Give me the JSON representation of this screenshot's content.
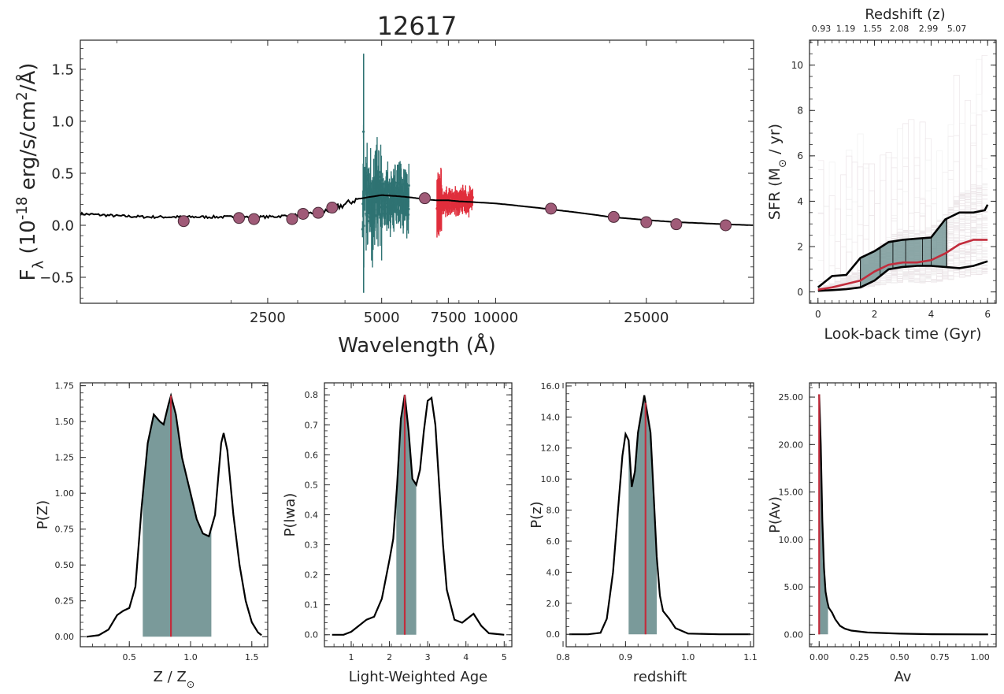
{
  "figure_title": "12617",
  "colors": {
    "photometry": "#a05b78",
    "grism_blue": "#2f7373",
    "grism_red": "#e02e3c",
    "model": "#000000",
    "fill": "#7a9a9a",
    "median": "#c22c3c"
  },
  "chart_data": [
    {
      "id": "sed",
      "type": "scatter",
      "title": "12617",
      "xlabel": "Wavelength ($\\AA$)",
      "ylabel": "F$_\\lambda$ (10$^{-18}$ $erg/s/cm^2/\\AA$)",
      "x_scale": "log",
      "xlim": [
        800,
        48000
      ],
      "ylim": [
        -0.75,
        1.78
      ],
      "x_ticks": [
        2500,
        5000,
        7500,
        10000,
        25000
      ],
      "y_ticks": [
        -0.5,
        0.0,
        0.5,
        1.0,
        1.5
      ],
      "series": [
        {
          "kind": "photometry",
          "points": [
            [
              1500,
              0.04
            ],
            [
              2100,
              0.07
            ],
            [
              2300,
              0.06
            ],
            [
              2900,
              0.06
            ],
            [
              3100,
              0.11
            ],
            [
              3400,
              0.12
            ],
            [
              3700,
              0.17
            ],
            [
              6500,
              0.26
            ],
            [
              14000,
              0.16
            ],
            [
              20500,
              0.08
            ],
            [
              25000,
              0.03
            ],
            [
              30000,
              0.01
            ],
            [
              40500,
              0.0
            ]
          ]
        },
        {
          "kind": "model",
          "points": [
            [
              800,
              0.11
            ],
            [
              1000,
              0.09
            ],
            [
              1200,
              0.08
            ],
            [
              1500,
              0.08
            ],
            [
              2000,
              0.08
            ],
            [
              2500,
              0.08
            ],
            [
              3000,
              0.1
            ],
            [
              3500,
              0.13
            ],
            [
              4000,
              0.2
            ],
            [
              4300,
              0.25
            ],
            [
              4600,
              0.27
            ],
            [
              5000,
              0.29
            ],
            [
              5500,
              0.28
            ],
            [
              5900,
              0.27
            ],
            [
              6500,
              0.25
            ],
            [
              7000,
              0.24
            ],
            [
              7500,
              0.24
            ],
            [
              8000,
              0.23
            ],
            [
              9000,
              0.22
            ],
            [
              10000,
              0.21
            ],
            [
              12000,
              0.18
            ],
            [
              15000,
              0.14
            ],
            [
              20000,
              0.08
            ],
            [
              25000,
              0.05
            ],
            [
              30000,
              0.03
            ],
            [
              40000,
              0.01
            ],
            [
              48000,
              0.0
            ]
          ]
        },
        {
          "kind": "grism_blue",
          "range": [
            4450,
            5900
          ],
          "level": 0.25,
          "scatter": 0.18,
          "peak": 1.65
        },
        {
          "kind": "grism_red",
          "range": [
            7000,
            8700
          ],
          "level": 0.23,
          "scatter": 0.07
        }
      ]
    },
    {
      "id": "sfh",
      "type": "line",
      "title": "Redshift (z)",
      "xlabel": "Look-back time (Gyr)",
      "ylabel": "SFR ($M_\\odot$ / yr)",
      "xlim": [
        -0.3,
        6.3
      ],
      "ylim": [
        -0.5,
        11.1
      ],
      "x_ticks": [
        0,
        2,
        4,
        6
      ],
      "y_ticks": [
        0,
        2,
        4,
        6,
        8,
        10
      ],
      "top_tick_labels": [
        "0.93",
        "1.19",
        "1.55",
        "2.08",
        "2.99",
        "5.07"
      ],
      "median": [
        [
          0,
          0.1
        ],
        [
          0.5,
          0.2
        ],
        [
          1,
          0.35
        ],
        [
          1.5,
          0.5
        ],
        [
          2,
          0.9
        ],
        [
          2.5,
          1.2
        ],
        [
          3,
          1.3
        ],
        [
          3.5,
          1.3
        ],
        [
          4,
          1.4
        ],
        [
          4.5,
          1.7
        ],
        [
          5,
          2.1
        ],
        [
          5.5,
          2.3
        ],
        [
          6,
          2.3
        ]
      ],
      "upper": [
        [
          0,
          0.2
        ],
        [
          0.5,
          0.7
        ],
        [
          1,
          0.75
        ],
        [
          1.5,
          1.5
        ],
        [
          2,
          1.8
        ],
        [
          2.5,
          2.2
        ],
        [
          3,
          2.3
        ],
        [
          3.5,
          2.35
        ],
        [
          4,
          2.4
        ],
        [
          4.5,
          3.2
        ],
        [
          5,
          3.5
        ],
        [
          5.5,
          3.5
        ],
        [
          5.9,
          3.6
        ],
        [
          6,
          3.85
        ]
      ],
      "lower": [
        [
          0,
          0.05
        ],
        [
          0.5,
          0.08
        ],
        [
          1,
          0.12
        ],
        [
          1.5,
          0.2
        ],
        [
          2,
          0.5
        ],
        [
          2.5,
          1.0
        ],
        [
          3,
          1.1
        ],
        [
          3.5,
          1.15
        ],
        [
          4,
          1.15
        ],
        [
          4.5,
          1.1
        ],
        [
          5,
          1.05
        ],
        [
          5.5,
          1.15
        ],
        [
          6,
          1.35
        ]
      ],
      "shade_range": [
        1.5,
        4.55
      ],
      "shade_dividers": [
        2.2,
        2.65,
        3.1,
        3.7,
        4.0,
        4.55
      ]
    },
    {
      "id": "pz_metal",
      "type": "area",
      "xlabel": "Z / Z$_\\odot$",
      "ylabel": "P(Z)",
      "xlim": [
        0.1,
        1.63
      ],
      "ylim": [
        -0.07,
        1.77
      ],
      "x_ticks": [
        0.5,
        1.0,
        1.5
      ],
      "y_ticks": [
        0.0,
        0.25,
        0.5,
        0.75,
        1.0,
        1.25,
        1.5,
        1.75
      ],
      "tick_format": 2,
      "median": 0.84,
      "shade": [
        0.61,
        1.17
      ],
      "curve": [
        [
          0.15,
          0.0
        ],
        [
          0.25,
          0.01
        ],
        [
          0.33,
          0.05
        ],
        [
          0.4,
          0.15
        ],
        [
          0.45,
          0.18
        ],
        [
          0.5,
          0.2
        ],
        [
          0.55,
          0.35
        ],
        [
          0.6,
          0.9
        ],
        [
          0.65,
          1.35
        ],
        [
          0.7,
          1.55
        ],
        [
          0.75,
          1.5
        ],
        [
          0.78,
          1.48
        ],
        [
          0.82,
          1.62
        ],
        [
          0.84,
          1.68
        ],
        [
          0.88,
          1.55
        ],
        [
          0.93,
          1.25
        ],
        [
          1.0,
          1.0
        ],
        [
          1.05,
          0.82
        ],
        [
          1.1,
          0.72
        ],
        [
          1.15,
          0.7
        ],
        [
          1.2,
          0.85
        ],
        [
          1.25,
          1.35
        ],
        [
          1.27,
          1.42
        ],
        [
          1.3,
          1.3
        ],
        [
          1.35,
          0.85
        ],
        [
          1.4,
          0.5
        ],
        [
          1.45,
          0.25
        ],
        [
          1.5,
          0.1
        ],
        [
          1.55,
          0.03
        ],
        [
          1.58,
          0.01
        ]
      ]
    },
    {
      "id": "pz_age",
      "type": "area",
      "xlabel": "Light-Weighted Age",
      "ylabel": "P(lwa)",
      "xlim": [
        0.3,
        5.2
      ],
      "ylim": [
        -0.04,
        0.84
      ],
      "x_ticks": [
        1,
        2,
        3,
        4,
        5
      ],
      "y_ticks": [
        0.0,
        0.1,
        0.2,
        0.3,
        0.4,
        0.5,
        0.6,
        0.7,
        0.8
      ],
      "tick_format": 1,
      "median": 2.4,
      "shade": [
        2.18,
        2.7
      ],
      "curve": [
        [
          0.5,
          0.0
        ],
        [
          0.8,
          0.0
        ],
        [
          1.0,
          0.01
        ],
        [
          1.2,
          0.03
        ],
        [
          1.4,
          0.05
        ],
        [
          1.6,
          0.06
        ],
        [
          1.8,
          0.12
        ],
        [
          2.0,
          0.25
        ],
        [
          2.1,
          0.32
        ],
        [
          2.2,
          0.5
        ],
        [
          2.3,
          0.72
        ],
        [
          2.4,
          0.8
        ],
        [
          2.5,
          0.68
        ],
        [
          2.6,
          0.52
        ],
        [
          2.7,
          0.5
        ],
        [
          2.8,
          0.55
        ],
        [
          2.9,
          0.68
        ],
        [
          3.0,
          0.78
        ],
        [
          3.1,
          0.79
        ],
        [
          3.2,
          0.7
        ],
        [
          3.3,
          0.5
        ],
        [
          3.4,
          0.3
        ],
        [
          3.5,
          0.15
        ],
        [
          3.7,
          0.05
        ],
        [
          3.9,
          0.04
        ],
        [
          4.1,
          0.06
        ],
        [
          4.2,
          0.07
        ],
        [
          4.4,
          0.03
        ],
        [
          4.6,
          0.005
        ],
        [
          5.0,
          0.0
        ]
      ]
    },
    {
      "id": "pz_redshift",
      "type": "area",
      "xlabel": "redshift",
      "ylabel": "P(z)",
      "xlim": [
        0.805,
        1.105
      ],
      "ylim": [
        -0.8,
        16.2
      ],
      "x_ticks": [
        0.8,
        0.9,
        1.0,
        1.1
      ],
      "y_ticks": [
        0,
        2,
        4,
        6,
        8,
        10,
        12,
        14,
        16
      ],
      "tick_format": 1,
      "median": 0.932,
      "shade": [
        0.905,
        0.95
      ],
      "curve": [
        [
          0.81,
          0.0
        ],
        [
          0.84,
          0.0
        ],
        [
          0.86,
          0.1
        ],
        [
          0.87,
          1.0
        ],
        [
          0.88,
          4.0
        ],
        [
          0.89,
          9.0
        ],
        [
          0.895,
          11.5
        ],
        [
          0.9,
          12.9
        ],
        [
          0.905,
          12.5
        ],
        [
          0.91,
          9.5
        ],
        [
          0.915,
          10.5
        ],
        [
          0.92,
          13.0
        ],
        [
          0.93,
          15.4
        ],
        [
          0.94,
          13.0
        ],
        [
          0.945,
          9.0
        ],
        [
          0.95,
          5.0
        ],
        [
          0.955,
          2.5
        ],
        [
          0.96,
          1.5
        ],
        [
          0.97,
          1.0
        ],
        [
          0.98,
          0.4
        ],
        [
          1.0,
          0.05
        ],
        [
          1.05,
          0.0
        ],
        [
          1.1,
          0.0
        ]
      ]
    },
    {
      "id": "pz_av",
      "type": "area",
      "xlabel": "Av",
      "ylabel": "P(Av)",
      "xlim": [
        -0.06,
        1.1
      ],
      "ylim": [
        -1.3,
        26.5
      ],
      "x_ticks": [
        0.0,
        0.25,
        0.5,
        0.75,
        1.0
      ],
      "y_ticks": [
        0,
        5,
        10,
        15,
        20,
        25
      ],
      "tick_format": 2,
      "median": 0.0,
      "shade": [
        0.0,
        0.055
      ],
      "curve": [
        [
          0.0,
          25.3
        ],
        [
          0.01,
          20.0
        ],
        [
          0.02,
          12.0
        ],
        [
          0.03,
          7.0
        ],
        [
          0.04,
          4.5
        ],
        [
          0.05,
          3.5
        ],
        [
          0.06,
          2.8
        ],
        [
          0.08,
          2.3
        ],
        [
          0.1,
          1.6
        ],
        [
          0.13,
          0.9
        ],
        [
          0.16,
          0.6
        ],
        [
          0.2,
          0.4
        ],
        [
          0.3,
          0.2
        ],
        [
          0.5,
          0.08
        ],
        [
          0.7,
          0.02
        ],
        [
          1.0,
          0.0
        ],
        [
          1.05,
          0.0
        ]
      ]
    }
  ]
}
